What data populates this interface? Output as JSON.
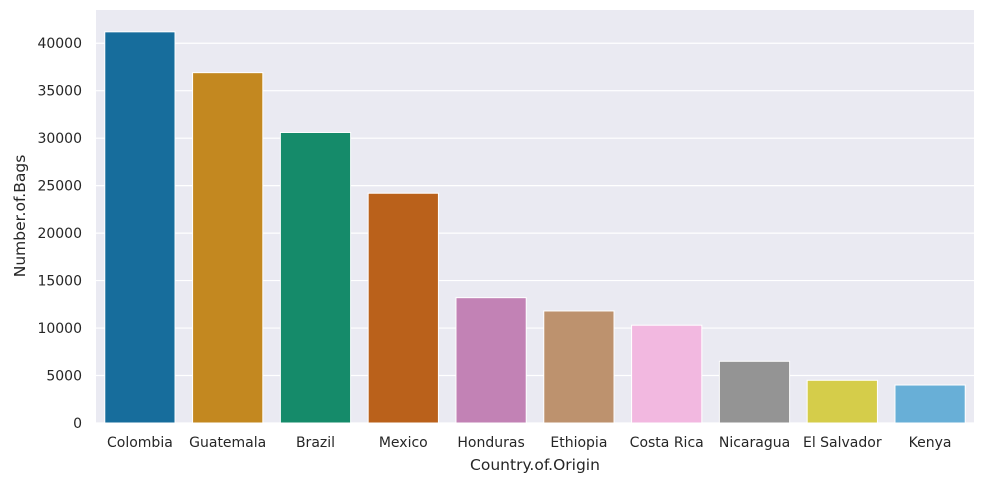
{
  "chart_data": {
    "type": "bar",
    "title": "",
    "xlabel": "Country.of.Origin",
    "ylabel": "Number.of.Bags",
    "categories": [
      "Colombia",
      "Guatemala",
      "Brazil",
      "Mexico",
      "Honduras",
      "Ethiopia",
      "Costa Rica",
      "Nicaragua",
      "El Salvador",
      "Kenya"
    ],
    "values": [
      41200,
      36900,
      30600,
      24200,
      13200,
      11800,
      10300,
      6500,
      4500,
      4000
    ],
    "colors": [
      "#0173b2",
      "#de8f05",
      "#029e73",
      "#d55e00",
      "#cc78bc",
      "#ca9161",
      "#fbafe4",
      "#949494",
      "#ece133",
      "#56b4e9"
    ],
    "ylim": [
      0,
      43500
    ],
    "yticks": [
      0,
      5000,
      10000,
      15000,
      20000,
      25000,
      30000,
      35000,
      40000
    ],
    "grid": true,
    "style": {
      "background": "#eaeaf2",
      "grid_color": "#ffffff",
      "bar_saturation": 0.75
    }
  }
}
